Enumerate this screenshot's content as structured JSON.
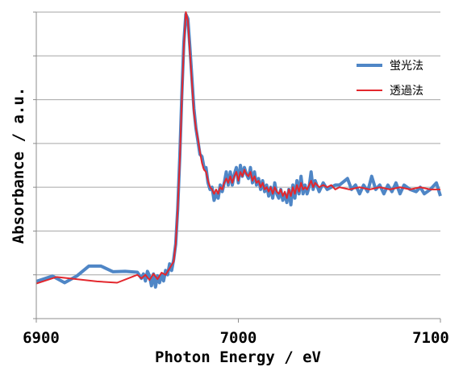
{
  "chart_data": {
    "type": "line",
    "title": "",
    "xlabel": "Photon Energy / eV",
    "ylabel": "Absorbance / a.u.",
    "xlim": [
      6900,
      7100
    ],
    "ylim": [
      0,
      7
    ],
    "x_ticks": [
      6900,
      7000,
      7100
    ],
    "y_grid": [
      1,
      2,
      3,
      4,
      5,
      6,
      7
    ],
    "grid": true,
    "legend_position": "right",
    "series": [
      {
        "name": "蛍光法",
        "color": "#4f86c6",
        "points": [
          [
            6900,
            0.85
          ],
          [
            6908,
            0.97
          ],
          [
            6914,
            0.82
          ],
          [
            6920,
            0.97
          ],
          [
            6926,
            1.2
          ],
          [
            6932,
            1.2
          ],
          [
            6938,
            1.07
          ],
          [
            6944,
            1.08
          ],
          [
            6950,
            1.06
          ],
          [
            6952,
            0.92
          ],
          [
            6953,
            1.02
          ],
          [
            6954,
            0.86
          ],
          [
            6955,
            1.08
          ],
          [
            6956,
            0.98
          ],
          [
            6957,
            0.75
          ],
          [
            6958,
            1.02
          ],
          [
            6959,
            0.72
          ],
          [
            6960,
            0.98
          ],
          [
            6961,
            0.82
          ],
          [
            6962,
            1.0
          ],
          [
            6963,
            0.86
          ],
          [
            6964,
            1.1
          ],
          [
            6965,
            1.0
          ],
          [
            6966,
            1.25
          ],
          [
            6967,
            1.1
          ],
          [
            6968,
            1.35
          ],
          [
            6969,
            1.7
          ],
          [
            6970,
            2.5
          ],
          [
            6971,
            3.7
          ],
          [
            6972,
            5.1
          ],
          [
            6973,
            6.3
          ],
          [
            6974,
            6.95
          ],
          [
            6975,
            6.85
          ],
          [
            6976,
            6.2
          ],
          [
            6977,
            5.5
          ],
          [
            6978,
            4.8
          ],
          [
            6979,
            4.35
          ],
          [
            6980,
            4.05
          ],
          [
            6981,
            3.75
          ],
          [
            6982,
            3.7
          ],
          [
            6983,
            3.45
          ],
          [
            6984,
            3.45
          ],
          [
            6985,
            3.1
          ],
          [
            6986,
            2.95
          ],
          [
            6987,
            3.0
          ],
          [
            6988,
            2.7
          ],
          [
            6989,
            2.85
          ],
          [
            6990,
            2.75
          ],
          [
            6991,
            3.05
          ],
          [
            6992,
            2.9
          ],
          [
            6993,
            3.1
          ],
          [
            6994,
            3.35
          ],
          [
            6995,
            3.05
          ],
          [
            6996,
            3.35
          ],
          [
            6997,
            3.05
          ],
          [
            6998,
            3.3
          ],
          [
            6999,
            3.45
          ],
          [
            7000,
            3.1
          ],
          [
            7001,
            3.5
          ],
          [
            7002,
            3.25
          ],
          [
            7003,
            3.45
          ],
          [
            7004,
            3.3
          ],
          [
            7005,
            3.2
          ],
          [
            7006,
            3.45
          ],
          [
            7007,
            3.1
          ],
          [
            7008,
            3.35
          ],
          [
            7009,
            3.05
          ],
          [
            7010,
            3.2
          ],
          [
            7011,
            2.95
          ],
          [
            7012,
            3.15
          ],
          [
            7013,
            2.9
          ],
          [
            7014,
            3.05
          ],
          [
            7015,
            2.8
          ],
          [
            7016,
            3.0
          ],
          [
            7017,
            2.75
          ],
          [
            7018,
            3.1
          ],
          [
            7019,
            2.85
          ],
          [
            7020,
            2.75
          ],
          [
            7021,
            2.95
          ],
          [
            7022,
            2.7
          ],
          [
            7023,
            2.85
          ],
          [
            7024,
            2.65
          ],
          [
            7025,
            2.95
          ],
          [
            7026,
            2.6
          ],
          [
            7027,
            3.05
          ],
          [
            7028,
            2.75
          ],
          [
            7029,
            3.15
          ],
          [
            7030,
            2.85
          ],
          [
            7031,
            3.25
          ],
          [
            7032,
            2.85
          ],
          [
            7033,
            3.05
          ],
          [
            7034,
            2.85
          ],
          [
            7035,
            3.0
          ],
          [
            7036,
            3.35
          ],
          [
            7037,
            2.95
          ],
          [
            7038,
            3.15
          ],
          [
            7040,
            2.9
          ],
          [
            7042,
            3.1
          ],
          [
            7044,
            2.95
          ],
          [
            7046,
            3.0
          ],
          [
            7048,
            3.05
          ],
          [
            7050,
            3.05
          ],
          [
            7054,
            3.2
          ],
          [
            7056,
            2.95
          ],
          [
            7058,
            3.05
          ],
          [
            7060,
            2.85
          ],
          [
            7062,
            3.05
          ],
          [
            7064,
            2.9
          ],
          [
            7066,
            3.25
          ],
          [
            7068,
            2.95
          ],
          [
            7070,
            3.05
          ],
          [
            7072,
            2.85
          ],
          [
            7074,
            3.05
          ],
          [
            7076,
            2.9
          ],
          [
            7078,
            3.1
          ],
          [
            7080,
            2.85
          ],
          [
            7082,
            3.05
          ],
          [
            7085,
            2.95
          ],
          [
            7088,
            2.9
          ],
          [
            7090,
            3.0
          ],
          [
            7092,
            2.85
          ],
          [
            7095,
            2.95
          ],
          [
            7098,
            3.1
          ],
          [
            7100,
            2.8
          ]
        ]
      },
      {
        "name": "透過法",
        "color": "#e3272d",
        "points": [
          [
            6900,
            0.8
          ],
          [
            6910,
            0.95
          ],
          [
            6920,
            0.9
          ],
          [
            6930,
            0.85
          ],
          [
            6940,
            0.82
          ],
          [
            6950,
            1.0
          ],
          [
            6952,
            0.92
          ],
          [
            6954,
            1.0
          ],
          [
            6956,
            0.88
          ],
          [
            6958,
            1.02
          ],
          [
            6960,
            0.9
          ],
          [
            6962,
            1.05
          ],
          [
            6964,
            1.0
          ],
          [
            6966,
            1.15
          ],
          [
            6968,
            1.3
          ],
          [
            6969,
            1.7
          ],
          [
            6970,
            2.5
          ],
          [
            6971,
            3.6
          ],
          [
            6972,
            5.0
          ],
          [
            6973,
            6.2
          ],
          [
            6974,
            7.0
          ],
          [
            6975,
            6.8
          ],
          [
            6976,
            6.1
          ],
          [
            6977,
            5.4
          ],
          [
            6978,
            4.7
          ],
          [
            6979,
            4.35
          ],
          [
            6980,
            4.1
          ],
          [
            6981,
            3.8
          ],
          [
            6982,
            3.55
          ],
          [
            6983,
            3.4
          ],
          [
            6984,
            3.35
          ],
          [
            6985,
            3.15
          ],
          [
            6986,
            3.0
          ],
          [
            6987,
            2.95
          ],
          [
            6988,
            2.85
          ],
          [
            6989,
            2.95
          ],
          [
            6990,
            2.85
          ],
          [
            6991,
            3.0
          ],
          [
            6992,
            2.95
          ],
          [
            6993,
            3.1
          ],
          [
            6994,
            3.2
          ],
          [
            6995,
            3.1
          ],
          [
            6996,
            3.25
          ],
          [
            6997,
            3.1
          ],
          [
            6998,
            3.25
          ],
          [
            6999,
            3.35
          ],
          [
            7000,
            3.15
          ],
          [
            7001,
            3.35
          ],
          [
            7002,
            3.25
          ],
          [
            7003,
            3.4
          ],
          [
            7004,
            3.3
          ],
          [
            7005,
            3.25
          ],
          [
            7006,
            3.35
          ],
          [
            7007,
            3.15
          ],
          [
            7008,
            3.25
          ],
          [
            7009,
            3.1
          ],
          [
            7010,
            3.15
          ],
          [
            7011,
            3.0
          ],
          [
            7012,
            3.1
          ],
          [
            7013,
            2.95
          ],
          [
            7014,
            3.0
          ],
          [
            7015,
            2.9
          ],
          [
            7016,
            3.0
          ],
          [
            7017,
            2.85
          ],
          [
            7018,
            3.0
          ],
          [
            7019,
            2.9
          ],
          [
            7020,
            2.85
          ],
          [
            7021,
            2.95
          ],
          [
            7022,
            2.8
          ],
          [
            7023,
            2.9
          ],
          [
            7024,
            2.75
          ],
          [
            7025,
            2.95
          ],
          [
            7026,
            2.8
          ],
          [
            7027,
            3.0
          ],
          [
            7028,
            2.85
          ],
          [
            7029,
            3.05
          ],
          [
            7030,
            2.9
          ],
          [
            7031,
            3.1
          ],
          [
            7032,
            2.95
          ],
          [
            7033,
            3.0
          ],
          [
            7034,
            2.95
          ],
          [
            7035,
            3.05
          ],
          [
            7036,
            3.15
          ],
          [
            7037,
            3.0
          ],
          [
            7038,
            3.1
          ],
          [
            7040,
            3.0
          ],
          [
            7042,
            3.05
          ],
          [
            7044,
            3.0
          ],
          [
            7046,
            3.05
          ],
          [
            7048,
            2.95
          ],
          [
            7050,
            3.0
          ],
          [
            7055,
            2.95
          ],
          [
            7060,
            3.0
          ],
          [
            7065,
            2.95
          ],
          [
            7070,
            3.0
          ],
          [
            7075,
            2.95
          ],
          [
            7080,
            3.0
          ],
          [
            7085,
            2.95
          ],
          [
            7090,
            3.0
          ],
          [
            7095,
            2.95
          ],
          [
            7100,
            2.95
          ]
        ]
      }
    ]
  }
}
